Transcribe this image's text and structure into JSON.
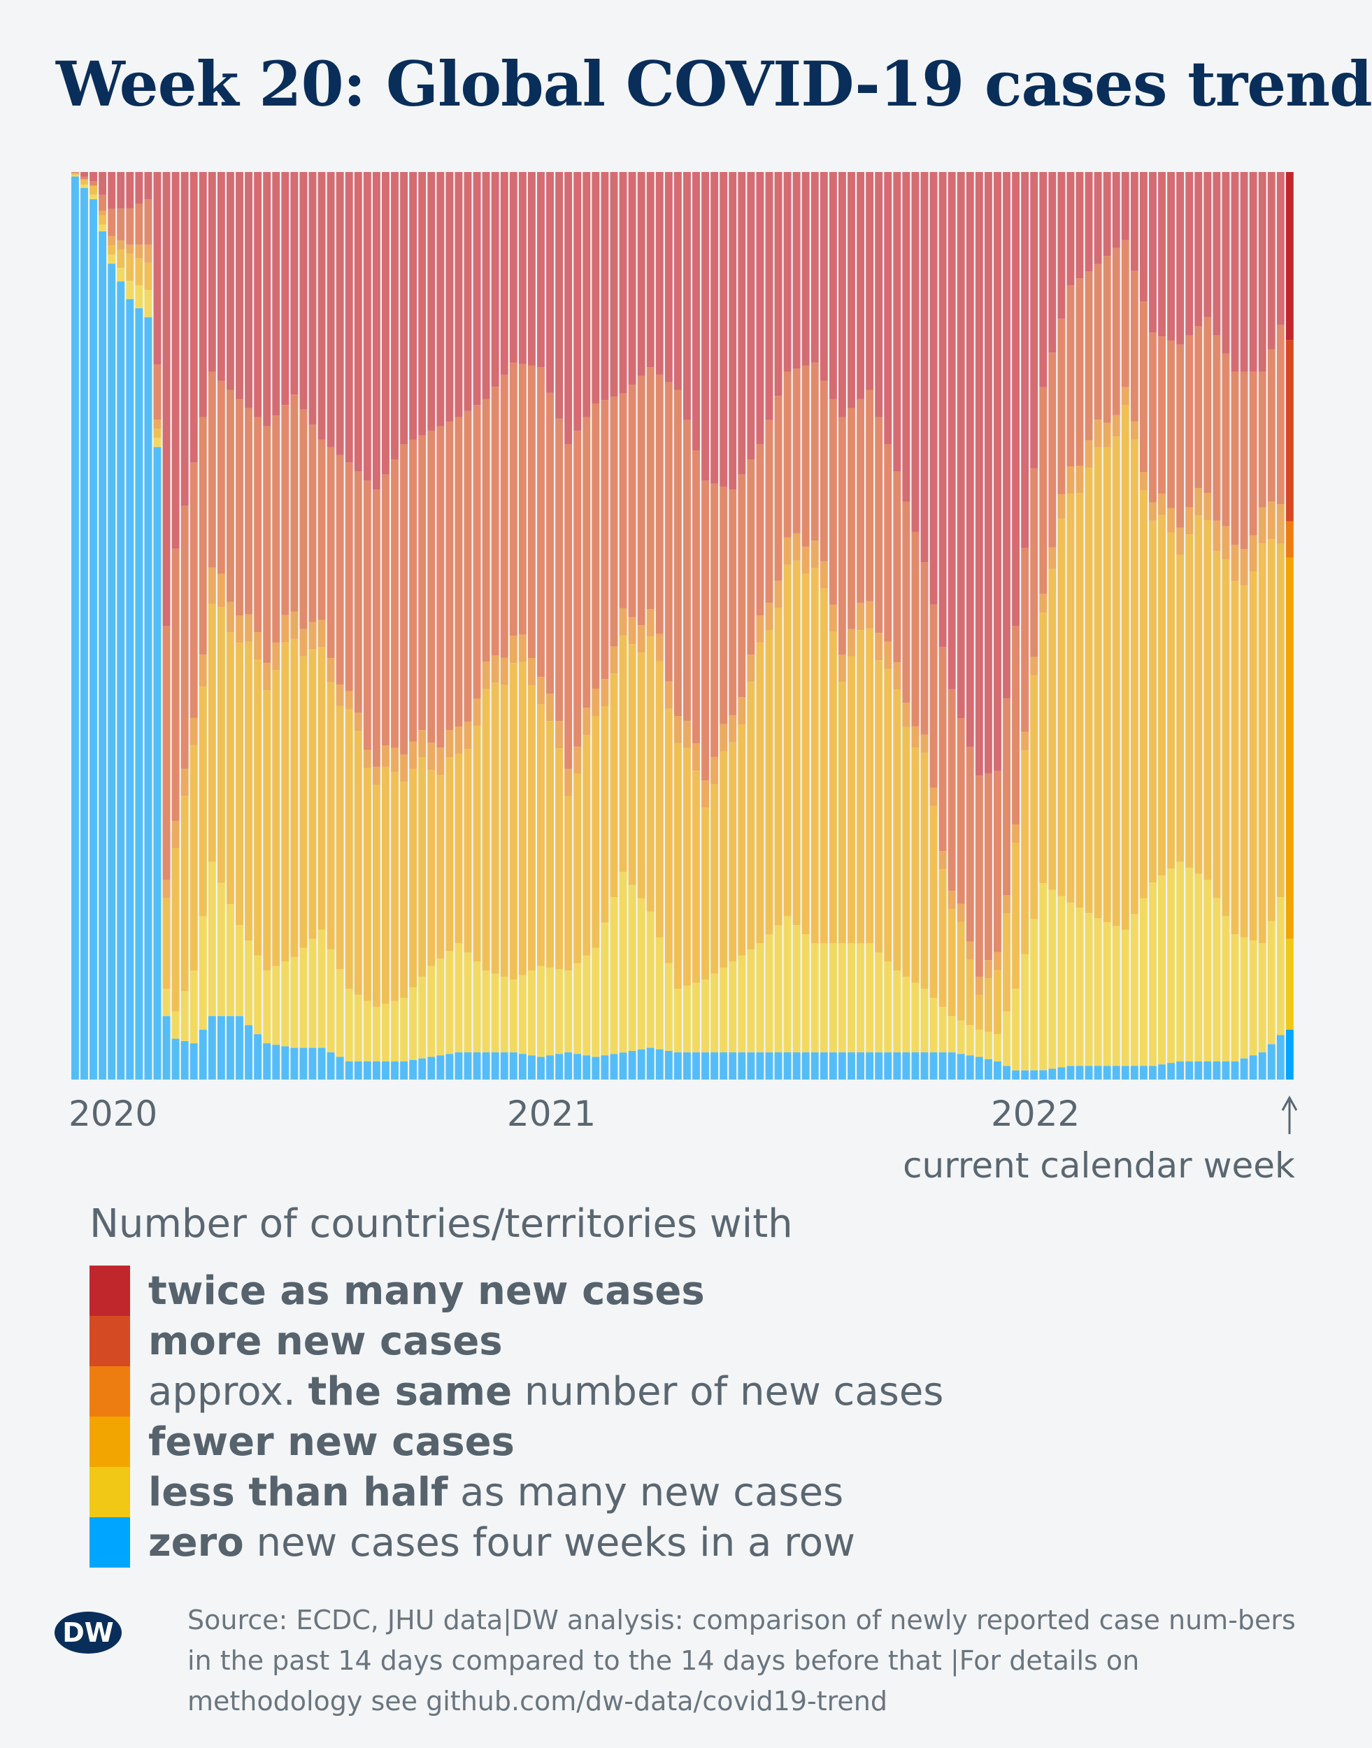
{
  "title": "Week 20: Global COVID-19 cases trend",
  "legend": {
    "title": "Number of countries/territories with",
    "items": [
      {
        "key": "twice",
        "color": "#c0272d",
        "pre": "",
        "bold": "twice as many new cases",
        "post": ""
      },
      {
        "key": "more",
        "color": "#d44a22",
        "pre": "",
        "bold": "more new cases",
        "post": ""
      },
      {
        "key": "same",
        "color": "#ee7d11",
        "pre": "approx. ",
        "bold": "the same",
        "post": " number of new cases"
      },
      {
        "key": "fewer",
        "color": "#f2a500",
        "pre": "",
        "bold": "fewer new cases",
        "post": ""
      },
      {
        "key": "half",
        "color": "#f0c815",
        "pre": "",
        "bold": "less than half",
        "post": " as many new cases"
      },
      {
        "key": "zero",
        "color": "#00a5ff",
        "pre": "",
        "bold": "zero",
        "post": " new cases four weeks in a row"
      }
    ]
  },
  "annotation": "current calendar week",
  "source": "Source: ECDC, JHU data|DW analysis: comparison of newly reported case num-bers in the past 14 days compared to the 14 days before that |For details on methodology see github.com/dw-data/covid19-trend",
  "logo_text": "DW",
  "chart_data": {
    "type": "bar",
    "stacked": true,
    "normalized": true,
    "x_tick_labels": [
      "2020",
      "2021",
      "2022"
    ],
    "x_ticks_at_week_index": [
      0,
      48,
      101
    ],
    "series_order": [
      "zero",
      "half",
      "fewer",
      "same",
      "more",
      "twice"
    ],
    "waypoint_weeks": [
      0,
      2,
      4,
      6,
      8,
      9,
      10,
      11,
      13,
      15,
      18,
      21,
      24,
      27,
      30,
      33,
      36,
      39,
      42,
      45,
      48,
      51,
      54,
      57,
      60,
      63,
      66,
      69,
      72,
      75,
      78,
      81,
      84,
      87,
      90,
      93,
      96,
      99,
      101,
      103,
      106,
      109,
      112,
      115,
      118,
      121,
      124,
      127,
      130,
      132,
      133
    ],
    "waypoint_shares": {
      "zero": [
        0.995,
        0.97,
        0.89,
        0.86,
        0.84,
        0.69,
        0.07,
        0.045,
        0.04,
        0.07,
        0.07,
        0.04,
        0.035,
        0.035,
        0.02,
        0.02,
        0.02,
        0.025,
        0.03,
        0.03,
        0.03,
        0.025,
        0.03,
        0.025,
        0.03,
        0.035,
        0.03,
        0.03,
        0.03,
        0.03,
        0.03,
        0.03,
        0.03,
        0.03,
        0.03,
        0.03,
        0.03,
        0.025,
        0.02,
        0.01,
        0.01,
        0.015,
        0.015,
        0.015,
        0.015,
        0.02,
        0.02,
        0.02,
        0.03,
        0.045,
        0.055
      ],
      "half": [
        0.002,
        0.005,
        0.01,
        0.02,
        0.03,
        0.01,
        0.03,
        0.03,
        0.08,
        0.17,
        0.1,
        0.08,
        0.1,
        0.13,
        0.08,
        0.06,
        0.07,
        0.1,
        0.12,
        0.09,
        0.08,
        0.1,
        0.09,
        0.12,
        0.2,
        0.15,
        0.07,
        0.08,
        0.1,
        0.12,
        0.15,
        0.12,
        0.12,
        0.12,
        0.09,
        0.07,
        0.04,
        0.03,
        0.03,
        0.09,
        0.2,
        0.18,
        0.16,
        0.15,
        0.2,
        0.22,
        0.2,
        0.14,
        0.12,
        0.14,
        0.1
      ],
      "fewer": [
        0.001,
        0.01,
        0.01,
        0.03,
        0.03,
        0.01,
        0.1,
        0.18,
        0.25,
        0.28,
        0.32,
        0.32,
        0.35,
        0.3,
        0.3,
        0.25,
        0.25,
        0.22,
        0.2,
        0.3,
        0.35,
        0.3,
        0.2,
        0.25,
        0.25,
        0.3,
        0.28,
        0.2,
        0.24,
        0.32,
        0.38,
        0.42,
        0.3,
        0.35,
        0.3,
        0.25,
        0.12,
        0.05,
        0.06,
        0.17,
        0.3,
        0.45,
        0.5,
        0.57,
        0.4,
        0.35,
        0.4,
        0.38,
        0.43,
        0.37,
        0.42
      ],
      "same": [
        0.001,
        0.0,
        0.01,
        0.01,
        0.02,
        0.01,
        0.02,
        0.03,
        0.03,
        0.04,
        0.03,
        0.03,
        0.03,
        0.03,
        0.02,
        0.02,
        0.03,
        0.03,
        0.03,
        0.03,
        0.03,
        0.03,
        0.03,
        0.03,
        0.03,
        0.03,
        0.03,
        0.03,
        0.03,
        0.03,
        0.03,
        0.03,
        0.03,
        0.03,
        0.03,
        0.02,
        0.02,
        0.02,
        0.02,
        0.02,
        0.02,
        0.03,
        0.03,
        0.02,
        0.02,
        0.03,
        0.03,
        0.04,
        0.04,
        0.04,
        0.04
      ],
      "more": [
        0.001,
        0.005,
        0.03,
        0.04,
        0.05,
        0.06,
        0.28,
        0.3,
        0.28,
        0.22,
        0.23,
        0.25,
        0.24,
        0.21,
        0.26,
        0.3,
        0.33,
        0.34,
        0.35,
        0.3,
        0.3,
        0.33,
        0.35,
        0.32,
        0.25,
        0.27,
        0.35,
        0.32,
        0.25,
        0.2,
        0.19,
        0.19,
        0.25,
        0.23,
        0.22,
        0.2,
        0.22,
        0.21,
        0.21,
        0.21,
        0.21,
        0.2,
        0.18,
        0.17,
        0.18,
        0.19,
        0.19,
        0.2,
        0.16,
        0.17,
        0.2
      ],
      "twice": [
        0.0,
        0.01,
        0.04,
        0.04,
        0.03,
        0.21,
        0.5,
        0.415,
        0.32,
        0.22,
        0.25,
        0.28,
        0.245,
        0.295,
        0.32,
        0.35,
        0.3,
        0.285,
        0.27,
        0.25,
        0.21,
        0.215,
        0.3,
        0.255,
        0.245,
        0.215,
        0.24,
        0.34,
        0.35,
        0.3,
        0.22,
        0.21,
        0.27,
        0.24,
        0.33,
        0.43,
        0.57,
        0.665,
        0.66,
        0.5,
        0.23,
        0.125,
        0.1,
        0.075,
        0.175,
        0.19,
        0.16,
        0.22,
        0.22,
        0.155,
        0.185
      ]
    },
    "bar_count": 134,
    "current_week_index": 133,
    "ylim": [
      0,
      1
    ]
  }
}
